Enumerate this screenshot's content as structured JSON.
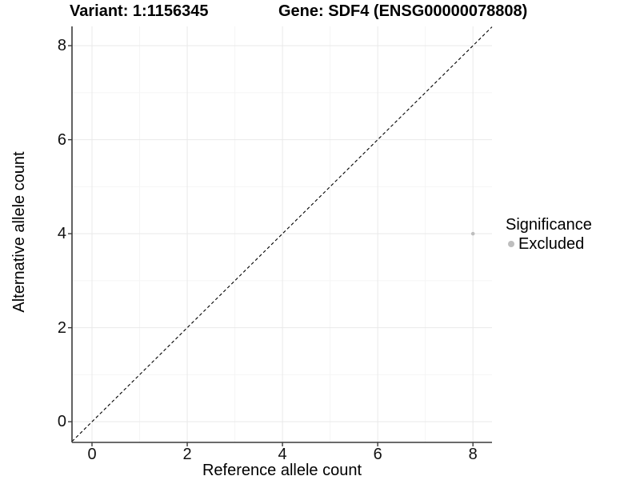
{
  "title": {
    "variant": "Variant: 1:1156345",
    "gene": "Gene: SDF4 (ENSG00000078808)"
  },
  "legend": {
    "title": "Significance",
    "items": [
      {
        "label": "Excluded",
        "color": "#bebebe"
      }
    ]
  },
  "colors": {
    "background": "#ffffff",
    "axis_line": "#3a3a3a",
    "tick_mark": "#3a3a3a",
    "grid_major": "#e9e9e9",
    "grid_minor": "#f5f5f5",
    "point": "#bebebe",
    "reference_line": "#000000",
    "text": "#000000"
  },
  "chart_data": {
    "type": "scatter",
    "title": "Variant: 1:1156345 — Gene: SDF4 (ENSG00000078808)",
    "xlabel": "Reference allele count",
    "ylabel": "Alternative allele count",
    "xlim": [
      -0.42,
      8.4
    ],
    "ylim": [
      -0.44,
      8.41
    ],
    "x_major_ticks": [
      0,
      2,
      4,
      6,
      8
    ],
    "x_minor_ticks": [
      1,
      3,
      5,
      7
    ],
    "y_major_ticks": [
      0,
      2,
      4,
      6,
      8
    ],
    "y_minor_ticks": [
      1,
      3,
      5,
      7
    ],
    "grid": true,
    "legend_position": "right",
    "series": [
      {
        "name": "Excluded",
        "color": "#bebebe",
        "points": [
          {
            "x": 8,
            "y": 4
          }
        ]
      }
    ],
    "reference_line": {
      "type": "identity",
      "slope": 1,
      "intercept": 0,
      "style": "dashed"
    }
  }
}
